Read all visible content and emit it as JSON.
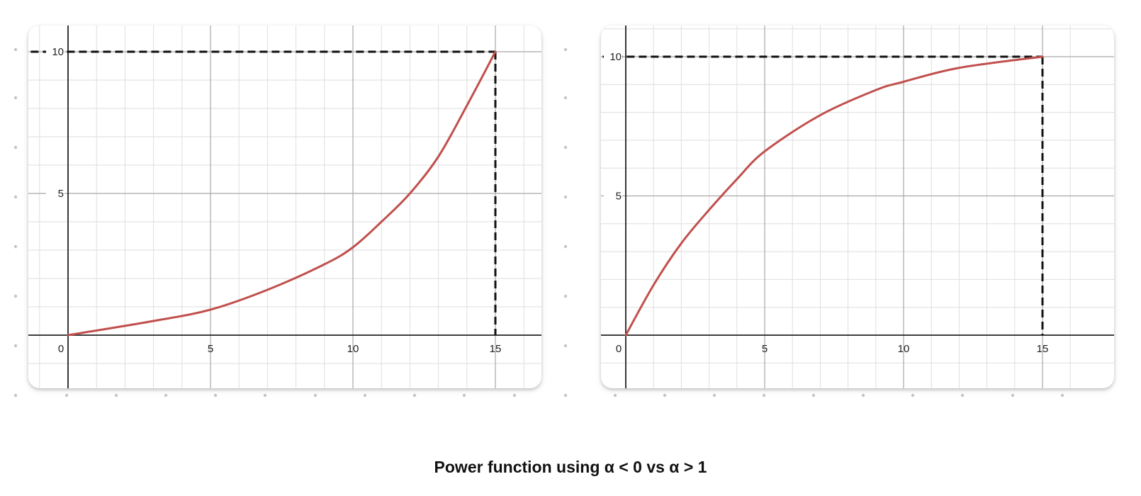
{
  "caption": {
    "prefix": "Power function using ",
    "symbol": "α",
    "middle": " < 0 vs ",
    "symbol2": "α",
    "suffix": " > 1"
  },
  "colors": {
    "curve": "#c0504d",
    "major_grid": "#a8a8a8",
    "minor_grid": "#dedede",
    "axis": "#222222",
    "guide": "#111111",
    "dots": "#c6c6c6"
  },
  "chart_data": [
    {
      "type": "line",
      "title": "",
      "xlabel": "",
      "ylabel": "",
      "xlim": [
        -3,
        16
      ],
      "ylim": [
        -1.5,
        11.5
      ],
      "x_ticks": [
        {
          "value": 0,
          "label": "0"
        },
        {
          "value": 5,
          "label": "5"
        },
        {
          "value": 10,
          "label": "10"
        },
        {
          "value": 15,
          "label": "15"
        }
      ],
      "y_ticks": [
        {
          "value": 5,
          "label": "5"
        },
        {
          "value": 10,
          "label": "10"
        }
      ],
      "grid": true,
      "series": [
        {
          "curve": "convex",
          "points": [
            [
              0,
              0
            ],
            [
              3,
              0.5
            ],
            [
              5,
              0.9
            ],
            [
              7,
              1.6
            ],
            [
              9,
              2.5
            ],
            [
              10,
              3.1
            ],
            [
              11,
              4.0
            ],
            [
              12,
              5.0
            ],
            [
              13,
              6.3
            ],
            [
              14,
              8.1
            ],
            [
              15,
              10
            ]
          ]
        }
      ],
      "guide_lines": [
        {
          "style": "dashed",
          "from": [
            -3,
            10
          ],
          "to": [
            15,
            10
          ]
        },
        {
          "style": "dashed",
          "from": [
            15,
            10
          ],
          "to": [
            15,
            0
          ]
        }
      ]
    },
    {
      "type": "line",
      "title": "",
      "xlabel": "",
      "ylabel": "",
      "xlim": [
        -3,
        16
      ],
      "ylim": [
        -1.5,
        11.5
      ],
      "x_ticks": [
        {
          "value": 0,
          "label": "0"
        },
        {
          "value": 5,
          "label": "5"
        },
        {
          "value": 10,
          "label": "10"
        },
        {
          "value": 15,
          "label": "15"
        }
      ],
      "y_ticks": [
        {
          "value": 5,
          "label": "5"
        },
        {
          "value": 10,
          "label": "10"
        }
      ],
      "grid": true,
      "series": [
        {
          "curve": "concave",
          "points": [
            [
              0,
              0
            ],
            [
              1,
              1.8
            ],
            [
              2,
              3.3
            ],
            [
              3,
              4.5
            ],
            [
              4,
              5.6
            ],
            [
              5,
              6.6
            ],
            [
              7,
              7.9
            ],
            [
              9,
              8.8
            ],
            [
              10,
              9.1
            ],
            [
              12,
              9.6
            ],
            [
              15,
              10
            ]
          ]
        }
      ],
      "guide_lines": [
        {
          "style": "dashed",
          "from": [
            -3,
            10
          ],
          "to": [
            15,
            10
          ]
        },
        {
          "style": "dashed",
          "from": [
            15,
            10
          ],
          "to": [
            15,
            0
          ]
        }
      ]
    }
  ]
}
